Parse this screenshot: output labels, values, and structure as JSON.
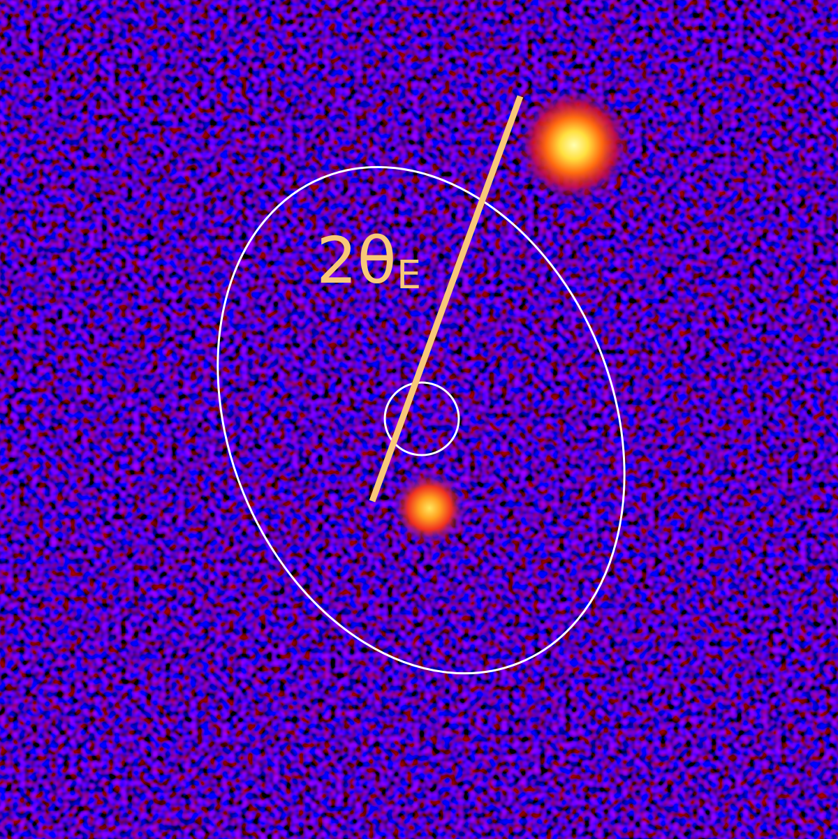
{
  "annotation": {
    "text": "2θ",
    "subscript": "E"
  }
}
